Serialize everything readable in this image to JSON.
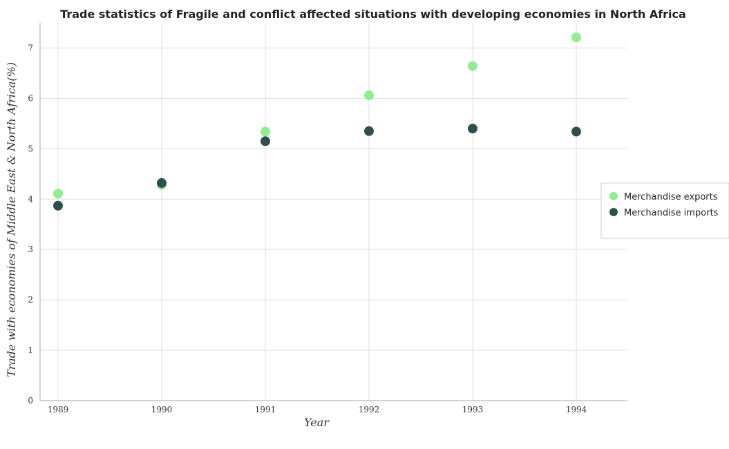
{
  "chart_data": {
    "type": "scatter",
    "title": "Trade statistics of Fragile and conflict affected situations with developing economies in North Africa",
    "xlabel": "Year",
    "ylabel": "Trade with economies of Middle East & North Africa(%)",
    "categories": [
      "1989",
      "1990",
      "1991",
      "1992",
      "1993",
      "1994"
    ],
    "ylim": [
      0,
      7.5
    ],
    "yticks": [
      "0",
      "1",
      "2",
      "3",
      "4",
      "5",
      "6",
      "7"
    ],
    "grid": true,
    "legend_position": "right",
    "series": [
      {
        "name": "Merchandise exports",
        "color": "#90ee90",
        "values": [
          4.11,
          4.28,
          5.34,
          6.06,
          6.64,
          7.21
        ]
      },
      {
        "name": "Merchandise imports",
        "color": "#2f4f4f",
        "values": [
          3.87,
          4.32,
          5.15,
          5.35,
          5.4,
          5.34
        ]
      }
    ]
  }
}
